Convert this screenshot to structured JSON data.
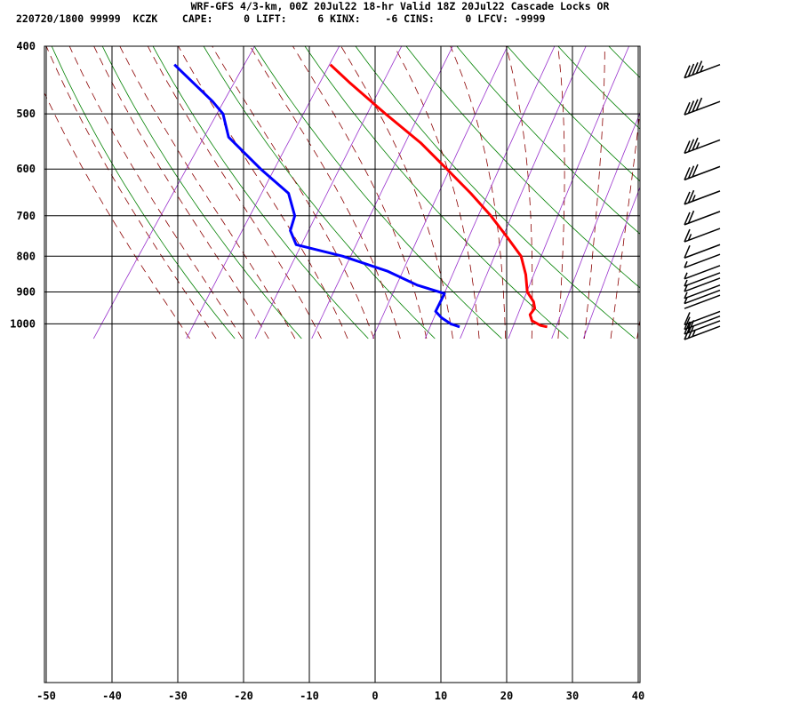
{
  "header": {
    "line1": "WRF-GFS 4/3-km, 00Z 20Jul22 18-hr Valid 18Z 20Jul22 Cascade Locks OR",
    "line2": "220720/1800 99999  KCZK    CAPE:     0 LIFT:     6 KINX:    -6 CINS:     0 LFCV: -9999"
  },
  "chart_data": {
    "type": "skew-t",
    "x_ticks": [
      -50,
      -40,
      -30,
      -20,
      -10,
      0,
      10,
      20,
      30,
      40
    ],
    "y_ticks": [
      400,
      500,
      600,
      700,
      800,
      900,
      1000
    ],
    "temperature": {
      "color": "#ff0000",
      "points": [
        {
          "p": 1010,
          "t": 26.5
        },
        {
          "p": 1005,
          "t": 25.3
        },
        {
          "p": 990,
          "t": 23.5
        },
        {
          "p": 970,
          "t": 22.5
        },
        {
          "p": 950,
          "t": 22.5
        },
        {
          "p": 930,
          "t": 21.6
        },
        {
          "p": 900,
          "t": 19.5
        },
        {
          "p": 850,
          "t": 17.3
        },
        {
          "p": 800,
          "t": 14.5
        },
        {
          "p": 750,
          "t": 10.1
        },
        {
          "p": 700,
          "t": 5.3
        },
        {
          "p": 650,
          "t": -0.3
        },
        {
          "p": 600,
          "t": -6.7
        },
        {
          "p": 550,
          "t": -13.7
        },
        {
          "p": 500,
          "t": -22.3
        },
        {
          "p": 450,
          "t": -31.5
        },
        {
          "p": 425,
          "t": -36.3
        }
      ]
    },
    "dewpoint": {
      "color": "#0000ff",
      "points": [
        {
          "p": 1010,
          "t": 13.2
        },
        {
          "p": 1000,
          "t": 11.5
        },
        {
          "p": 980,
          "t": 9.4
        },
        {
          "p": 960,
          "t": 7.8
        },
        {
          "p": 945,
          "t": 7.6
        },
        {
          "p": 905,
          "t": 7.1
        },
        {
          "p": 880,
          "t": 2.0
        },
        {
          "p": 840,
          "t": -4.2
        },
        {
          "p": 800,
          "t": -12.6
        },
        {
          "p": 770,
          "t": -21.0
        },
        {
          "p": 735,
          "t": -23.5
        },
        {
          "p": 700,
          "t": -24.5
        },
        {
          "p": 650,
          "t": -28.0
        },
        {
          "p": 600,
          "t": -35.0
        },
        {
          "p": 540,
          "t": -43.5
        },
        {
          "p": 500,
          "t": -47.0
        },
        {
          "p": 480,
          "t": -50.0
        },
        {
          "p": 425,
          "t": -60.0
        }
      ]
    },
    "wind_barbs": [
      {
        "p": 1008,
        "barbs": 2.5
      },
      {
        "p": 990,
        "barbs": 2
      },
      {
        "p": 975,
        "barbs": 1.5
      },
      {
        "p": 960,
        "barbs": 1
      },
      {
        "p": 910,
        "barbs": 0
      },
      {
        "p": 895,
        "barbs": 0.5
      },
      {
        "p": 880,
        "barbs": 0.5
      },
      {
        "p": 860,
        "barbs": 0.5
      },
      {
        "p": 845,
        "barbs": 0.5
      },
      {
        "p": 825,
        "barbs": 0.5
      },
      {
        "p": 795,
        "barbs": 0.5
      },
      {
        "p": 770,
        "barbs": 1
      },
      {
        "p": 730,
        "barbs": 1.5
      },
      {
        "p": 690,
        "barbs": 2
      },
      {
        "p": 645,
        "barbs": 2.5
      },
      {
        "p": 595,
        "barbs": 3
      },
      {
        "p": 545,
        "barbs": 3.5
      },
      {
        "p": 480,
        "barbs": 4
      },
      {
        "p": 425,
        "barbs": 4.5
      }
    ],
    "background_lines": {
      "isotherm_color": "#000000",
      "dry_adiabat_color": "#008000",
      "moist_adiabat_color": "#8b0000",
      "mixing_ratio_color": "#9932cc"
    }
  }
}
